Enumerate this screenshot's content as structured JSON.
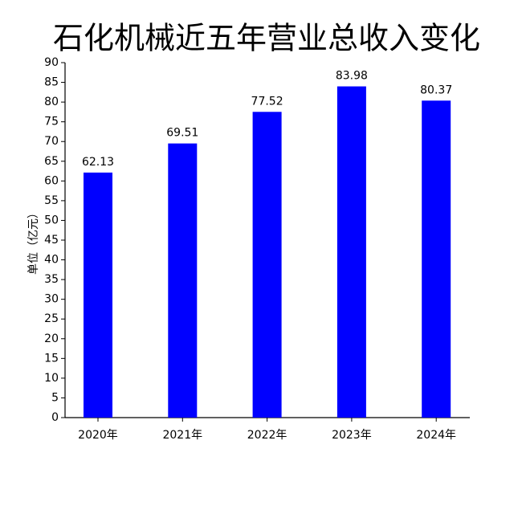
{
  "chart_data": {
    "type": "bar",
    "title": "石化机械近五年营业总收入变化",
    "ylabel": "单位（亿元）",
    "categories": [
      "2020年",
      "2021年",
      "2022年",
      "2023年",
      "2024年"
    ],
    "values": [
      62.13,
      69.51,
      77.52,
      83.98,
      80.37
    ],
    "color": "#0000ff",
    "ylim": [
      0,
      90
    ],
    "yticks": [
      0,
      5,
      10,
      15,
      20,
      25,
      30,
      35,
      40,
      45,
      50,
      55,
      60,
      65,
      70,
      75,
      80,
      85,
      90
    ],
    "grid": false
  }
}
